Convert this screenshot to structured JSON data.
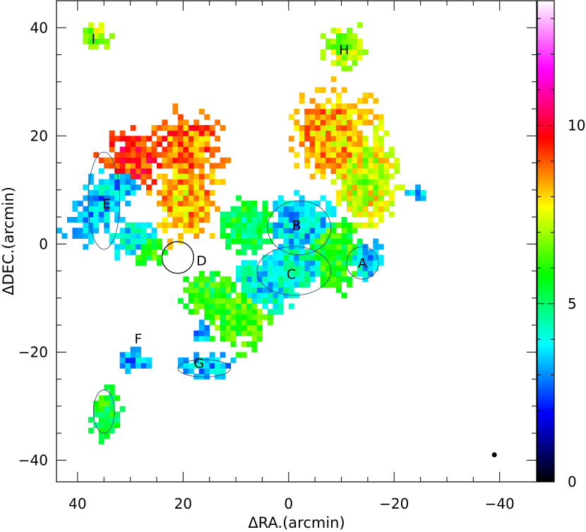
{
  "chart_data": {
    "type": "heatmap",
    "xlabel": "ΔRA.(arcmin)",
    "ylabel": "ΔDEC.(arcmin)",
    "xlim": [
      44,
      -47
    ],
    "ylim": [
      -44,
      45
    ],
    "xticks": [
      "40",
      "20",
      "0",
      "−20",
      "−40"
    ],
    "yticks": [
      "40",
      "20",
      "0",
      "−20",
      "−40"
    ],
    "colorbar": {
      "range": [
        0,
        13.5
      ],
      "ticks": [
        "0",
        "5",
        "10"
      ],
      "colormap": [
        "#000000",
        "#0000ff",
        "#00ffff",
        "#00ff00",
        "#ffff00",
        "#ff0000",
        "#ff00ff",
        "#ffffff"
      ]
    },
    "regions": [
      {
        "label": "A",
        "ra": -14,
        "dec": -3.5
      },
      {
        "label": "B",
        "ra": -1.5,
        "dec": 3.5
      },
      {
        "label": "C",
        "ra": -0.5,
        "dec": -5.5
      },
      {
        "label": "D",
        "ra": 16.5,
        "dec": -3
      },
      {
        "label": "E",
        "ra": 34.5,
        "dec": 7.5
      },
      {
        "label": "F",
        "ra": 28.5,
        "dec": -17.5
      },
      {
        "label": "G",
        "ra": 17,
        "dec": -22
      },
      {
        "label": "H",
        "ra": -10.5,
        "dec": 36
      },
      {
        "label": "I",
        "ra": 37,
        "dec": 38
      }
    ],
    "circle": {
      "ra": 21,
      "dec": -2.5,
      "radius_arcmin": 3
    },
    "beam": {
      "ra": -39,
      "dec": -39
    }
  }
}
